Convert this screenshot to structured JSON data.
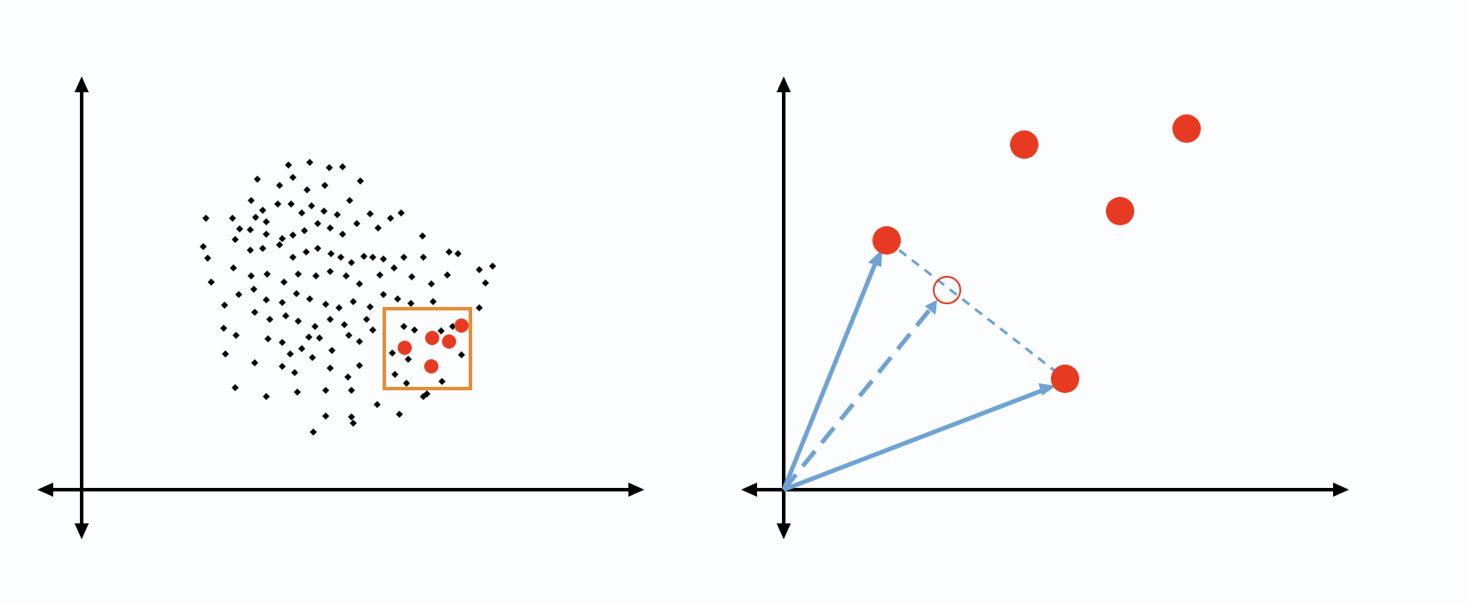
{
  "colors": {
    "background": "#fcfdfe",
    "axis": "#000000",
    "dot": "#000000",
    "highlight_point": "#e63b22",
    "box": "#e0913d",
    "vector": "#6ea3d2",
    "interpolated_point_outline": "#e63b22"
  },
  "left_panel": {
    "cloud_points": [
      [
        290,
        202
      ],
      [
        325,
        186
      ],
      [
        349,
        183
      ],
      [
        371,
        189
      ],
      [
        386,
        188
      ],
      [
        330,
        200
      ],
      [
        346,
        214
      ],
      [
        366,
        209
      ],
      [
        406,
        204
      ],
      [
        315,
        209
      ],
      [
        283,
        226
      ],
      [
        296,
        237
      ],
      [
        288,
        245
      ],
      [
        300,
        250
      ],
      [
        313,
        230
      ],
      [
        328,
        230
      ],
      [
        340,
        240
      ],
      [
        351,
        232
      ],
      [
        365,
        238
      ],
      [
        380,
        242
      ],
      [
        394,
        226
      ],
      [
        417,
        241
      ],
      [
        440,
        246
      ],
      [
        452,
        240
      ],
      [
        232,
        246
      ],
      [
        262,
        246
      ],
      [
        270,
        258
      ],
      [
        282,
        259
      ],
      [
        300,
        264
      ],
      [
        318,
        269
      ],
      [
        330,
        265
      ],
      [
        343,
        260
      ],
      [
        358,
        252
      ],
      [
        372,
        257
      ],
      [
        386,
        264
      ],
      [
        402,
        252
      ],
      [
        426,
        257
      ],
      [
        229,
        278
      ],
      [
        234,
        291
      ],
      [
        265,
        270
      ],
      [
        282,
        282
      ],
      [
        296,
        280
      ],
      [
        315,
        276
      ],
      [
        330,
        290
      ],
      [
        345,
        284
      ],
      [
        358,
        280
      ],
      [
        373,
        286
      ],
      [
        384,
        290
      ],
      [
        396,
        296
      ],
      [
        410,
        289
      ],
      [
        420,
        290
      ],
      [
        432,
        292
      ],
      [
        455,
        290
      ],
      [
        476,
        266
      ],
      [
        477,
        290
      ],
      [
        506,
        284
      ],
      [
        516,
        286
      ],
      [
        540,
        304
      ],
      [
        555,
        300
      ],
      [
        238,
        318
      ],
      [
        263,
        302
      ],
      [
        283,
        311
      ],
      [
        301,
        309
      ],
      [
        320,
        318
      ],
      [
        336,
        309
      ],
      [
        356,
        311
      ],
      [
        372,
        306
      ],
      [
        390,
        311
      ],
      [
        405,
        320
      ],
      [
        428,
        310
      ],
      [
        444,
        302
      ],
      [
        464,
        312
      ],
      [
        486,
        320
      ],
      [
        504,
        310
      ],
      [
        547,
        319
      ],
      [
        253,
        344
      ],
      [
        269,
        332
      ],
      [
        286,
        326
      ],
      [
        300,
        338
      ],
      [
        318,
        341
      ],
      [
        334,
        331
      ],
      [
        349,
        337
      ],
      [
        367,
        343
      ],
      [
        382,
        347
      ],
      [
        398,
        340
      ],
      [
        417,
        346
      ],
      [
        432,
        332
      ],
      [
        448,
        337
      ],
      [
        463,
        342
      ],
      [
        488,
        340
      ],
      [
        540,
        347
      ],
      [
        252,
        370
      ],
      [
        266,
        378
      ],
      [
        287,
        352
      ],
      [
        304,
        360
      ],
      [
        322,
        356
      ],
      [
        336,
        362
      ],
      [
        355,
        368
      ],
      [
        372,
        360
      ],
      [
        388,
        366
      ],
      [
        413,
        360
      ],
      [
        254,
        399
      ],
      [
        287,
        409
      ],
      [
        302,
        382
      ],
      [
        318,
        386
      ],
      [
        327,
        399
      ],
      [
        340,
        393
      ],
      [
        348,
        380
      ],
      [
        360,
        381
      ],
      [
        374,
        395
      ],
      [
        393,
        378
      ],
      [
        405,
        385
      ],
      [
        420,
        372
      ],
      [
        455,
        368
      ],
      [
        467,
        372
      ],
      [
        497,
        373
      ],
      [
        265,
        437
      ],
      [
        300,
        447
      ],
      [
        318,
        413
      ],
      [
        332,
        420
      ],
      [
        352,
        403
      ],
      [
        372,
        415
      ],
      [
        392,
        425
      ],
      [
        405,
        412
      ],
      [
        445,
        422
      ],
      [
        458,
        432
      ],
      [
        335,
        442
      ],
      [
        367,
        440
      ],
      [
        396,
        440
      ],
      [
        425,
        456
      ],
      [
        450,
        467
      ],
      [
        367,
        469
      ],
      [
        396,
        470
      ],
      [
        398,
        477
      ],
      [
        353,
        487
      ],
      [
        477,
        447
      ],
      [
        481,
        444
      ],
      [
        460,
        405
      ],
      [
        442,
        398
      ],
      [
        510,
        368
      ],
      [
        520,
        400
      ],
      [
        498,
        430
      ]
    ],
    "highlight_points": [
      [
        456,
        392
      ],
      [
        487,
        381
      ],
      [
        506,
        385
      ],
      [
        520,
        367
      ],
      [
        486,
        413
      ]
    ]
  },
  "right_panel": {
    "points": [
      [
        1154,
        163
      ],
      [
        1337,
        145
      ],
      [
        1262,
        238
      ],
      [
        999,
        271
      ],
      [
        1200,
        427
      ]
    ],
    "vector_tips": [
      [
        999,
        271
      ],
      [
        1200,
        427
      ]
    ],
    "interpolated_point": [
      1067,
      327
    ]
  }
}
